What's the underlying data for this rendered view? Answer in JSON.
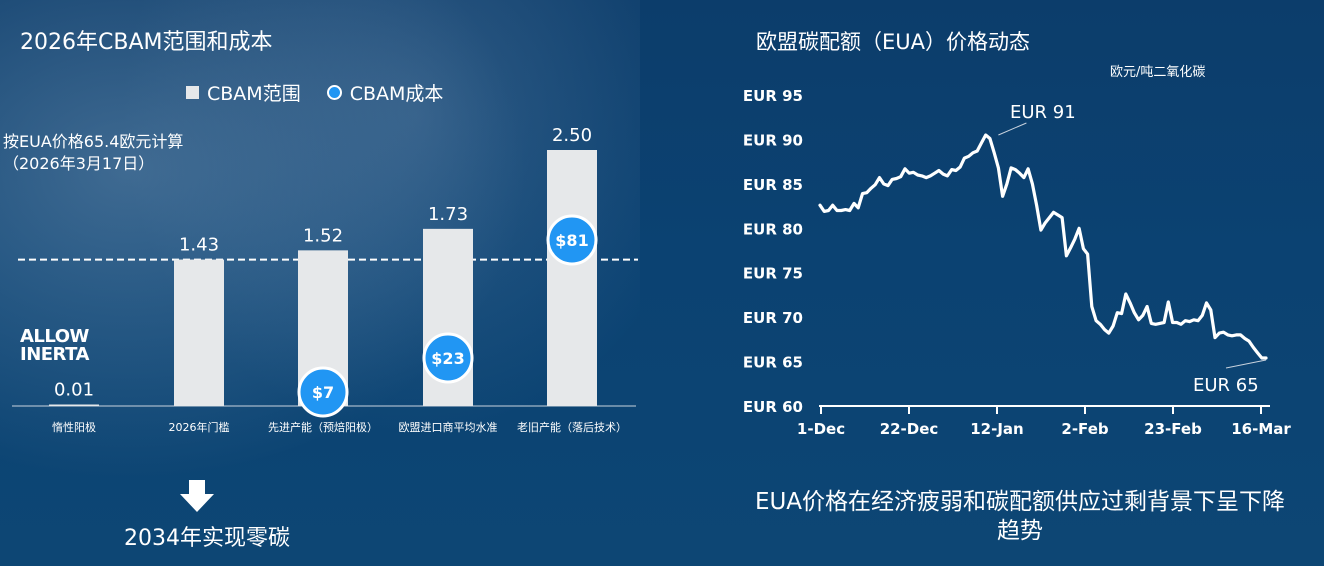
{
  "left_title": "2026年CBAM范围和成本",
  "legend": {
    "scope": "CBAM范围",
    "cost": "CBAM成本"
  },
  "note_line1": "按EUA价格65.4欧元计算",
  "note_line2": "（2026年3月17日）",
  "logo_line1": "ALLOW",
  "logo_line2": "INERTA",
  "bottom_left": "2034年实现零碳",
  "right_title": "欧盟碳配额（EUA）价格动态",
  "unit": "欧元/吨二氧化碳",
  "bottom_right": "EUA价格在经济疲弱和碳配额供应过剩背景下呈下降趋势",
  "colors": {
    "bar": "#e6e8ea",
    "cost": "#2196f3",
    "line": "#ffffff",
    "background": "#0c3f6e"
  },
  "chart_data": [
    {
      "type": "bar",
      "title": "2026年CBAM范围和成本",
      "categories": [
        "惰性阳极",
        "2026年门槛",
        "先进产能（预焙阳极）",
        "欧盟进口商平均水准",
        "老旧产能（落后技术）"
      ],
      "series": [
        {
          "name": "CBAM范围",
          "values": [
            0.01,
            1.43,
            1.52,
            1.73,
            2.5
          ],
          "labels": [
            "0.01",
            "1.43",
            "1.52",
            "1.73",
            "2.50"
          ]
        },
        {
          "name": "CBAM成本",
          "values": [
            null,
            null,
            7,
            23,
            81
          ],
          "labels": [
            "",
            "",
            "$7",
            "$23",
            "$81"
          ]
        }
      ],
      "threshold": 1.43,
      "ylim": [
        0,
        2.6
      ]
    },
    {
      "type": "line",
      "title": "欧盟碳配额（EUA）价格动态",
      "ylabel": "欧元/吨二氧化碳",
      "yticks": [
        "EUR 60",
        "EUR 65",
        "EUR 70",
        "EUR 75",
        "EUR 80",
        "EUR 85",
        "EUR 90",
        "EUR 95"
      ],
      "ylim": [
        60,
        95
      ],
      "xticks": [
        "1-Dec",
        "22-Dec",
        "12-Jan",
        "2-Feb",
        "23-Feb",
        "16-Mar"
      ],
      "annotations": [
        {
          "text": "EUR 91",
          "x": 42,
          "y": 90.5
        },
        {
          "text": "EUR 65",
          "x": 105,
          "y": 65.4
        }
      ],
      "series": [
        {
          "x": [
            0,
            1,
            2,
            3,
            4,
            5,
            6,
            7,
            8,
            9,
            10,
            11,
            12,
            13,
            14,
            15,
            16,
            17,
            18,
            19,
            20,
            21,
            22,
            23,
            24,
            25,
            26,
            27,
            28,
            29,
            30,
            31,
            32,
            33,
            34,
            35,
            36,
            37,
            38,
            39,
            40,
            41,
            42,
            43,
            44,
            45,
            46,
            47,
            48,
            49,
            50,
            51,
            52,
            53,
            54,
            55,
            56,
            57,
            58,
            59,
            60,
            61,
            62,
            63,
            64,
            65,
            66,
            67,
            68,
            69,
            70,
            71,
            72,
            73,
            74,
            75,
            76,
            77,
            78,
            79,
            80,
            81,
            82,
            83,
            84,
            85,
            86,
            87,
            88,
            89,
            90,
            91,
            92,
            93,
            94,
            95,
            96,
            97,
            98,
            99,
            100,
            101,
            102,
            103,
            104,
            105
          ],
          "y": [
            82.6,
            81.9,
            82.0,
            82.6,
            82.0,
            82.0,
            82.1,
            82.0,
            82.8,
            82.3,
            83.9,
            84.0,
            84.5,
            84.9,
            85.7,
            85.0,
            84.8,
            85.5,
            85.6,
            85.8,
            86.7,
            86.2,
            86.3,
            86.0,
            85.9,
            85.7,
            85.9,
            86.2,
            86.5,
            86.1,
            85.9,
            86.6,
            86.5,
            86.9,
            87.9,
            88.1,
            88.5,
            88.7,
            89.6,
            90.5,
            90.1,
            88.5,
            86.8,
            83.6,
            85.0,
            86.8,
            86.6,
            86.2,
            85.7,
            86.7,
            85.0,
            82.6,
            79.8,
            80.6,
            81.2,
            81.8,
            81.5,
            81.2,
            76.9,
            77.8,
            78.8,
            80.0,
            77.7,
            77.1,
            71.2,
            69.6,
            69.2,
            68.6,
            68.2,
            69.0,
            70.5,
            70.4,
            72.6,
            71.6,
            70.5,
            69.7,
            70.2,
            71.2,
            69.3,
            69.2,
            69.3,
            69.4,
            71.7,
            69.4,
            69.4,
            69.2,
            69.6,
            69.5,
            69.7,
            69.6,
            70.2,
            71.6,
            70.8,
            67.7,
            68.2,
            68.3,
            68.0,
            67.9,
            68.0,
            68.0,
            67.6,
            67.3,
            66.6,
            66.0,
            65.4,
            65.4
          ]
        }
      ]
    }
  ]
}
